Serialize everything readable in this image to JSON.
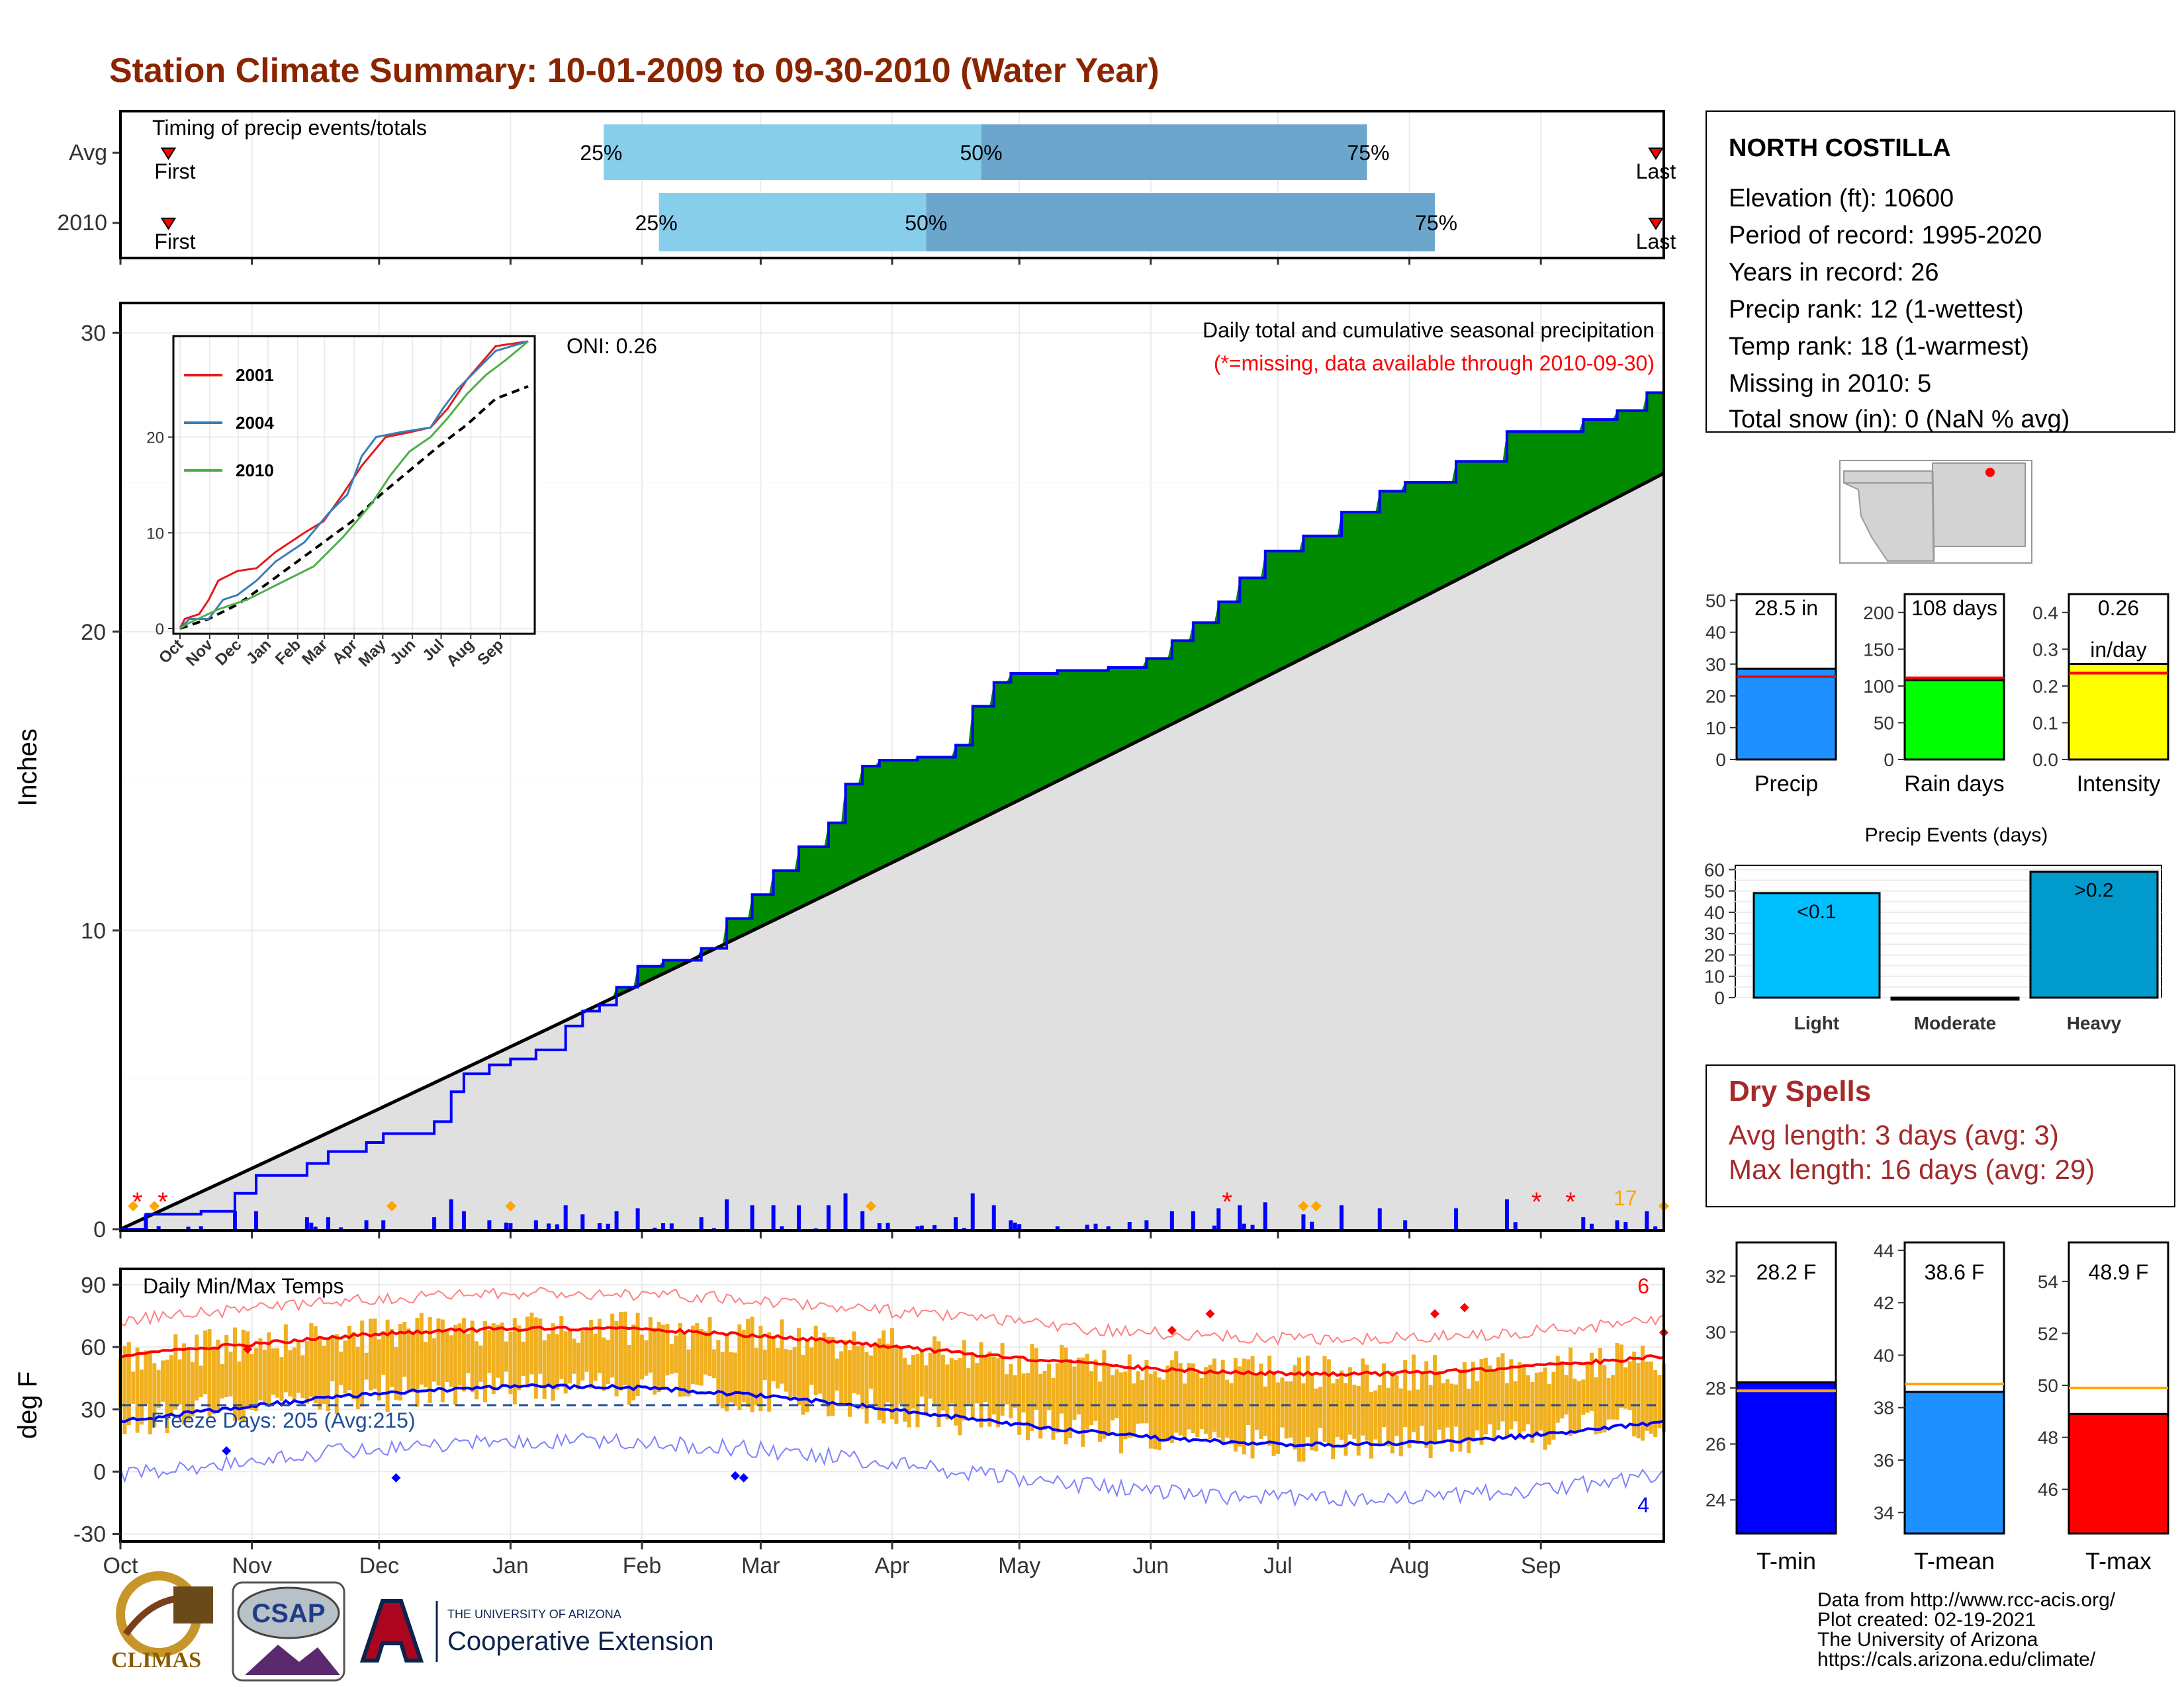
{
  "title": "Station Climate Summary: 10-01-2009 to 09-30-2010 (Water Year)",
  "colors": {
    "title": "#8B2500",
    "q_light": "#87CEEB",
    "q_dark": "#6CA6CD",
    "surplus": "#008B00",
    "deficit": "#8B5A00",
    "normal_fill": "#E0E0E0",
    "precip_bars": "#0000FF",
    "temp_bars": "#F0B020",
    "tmax_line": "#FF0000",
    "tmin_line": "#0000FF",
    "dry_spells": "#A52A2A"
  },
  "timing": {
    "title": "Timing of precip events/totals",
    "rows": [
      {
        "label": "Avg",
        "first": "First",
        "last": "Last",
        "q25_label": "25%",
        "q50_label": "50%",
        "q75_label": "75%",
        "first_day": 6,
        "q25_day": 114,
        "q50_day": 203,
        "q75_day": 294,
        "last_day": 364
      },
      {
        "label": "2010",
        "first": "First",
        "last": "Last",
        "q25_label": "25%",
        "q50_label": "50%",
        "q75_label": "75%",
        "first_day": 6,
        "q25_day": 127,
        "q50_day": 190,
        "q75_day": 310,
        "last_day": 364
      }
    ]
  },
  "precip": {
    "ylabel": "Inches",
    "title1": "Daily total and cumulative seasonal precipitation",
    "title2": "(*=missing, data available through 2010-09-30)",
    "oni": "ONI: 0.26",
    "corner_count": "17",
    "yticks": [
      "0",
      "10",
      "20",
      "30"
    ],
    "ymax": 31,
    "final_total": 28.5,
    "final_normal": 25.3
  },
  "inset": {
    "yticks": [
      "0",
      "10",
      "20"
    ],
    "months": [
      "Oct",
      "Nov",
      "Dec",
      "Jan",
      "Feb",
      "Mar",
      "Apr",
      "May",
      "Jun",
      "Jul",
      "Aug",
      "Sep"
    ],
    "legend": [
      {
        "name": "2001",
        "color": "#E41A1C"
      },
      {
        "name": "2004",
        "color": "#377EB8"
      },
      {
        "name": "2010",
        "color": "#4DAF4A"
      }
    ]
  },
  "temps": {
    "ylabel": "deg F",
    "title": "Daily Min/Max Temps",
    "freeze": "Freeze Days: 205 (Avg:215)",
    "count_high": "6",
    "count_low": "4",
    "yticks": [
      "-30",
      "0",
      "30",
      "60",
      "90"
    ]
  },
  "months": [
    "Oct",
    "Nov",
    "Dec",
    "Jan",
    "Feb",
    "Mar",
    "Apr",
    "May",
    "Jun",
    "Jul",
    "Aug",
    "Sep"
  ],
  "station": {
    "name": "NORTH COSTILLA",
    "lines": [
      "Elevation (ft): 10600",
      "Period of record: 1995-2020",
      "Years in record: 26",
      "Precip rank: 12 (1-wettest)",
      "Temp rank: 18 (1-warmest)",
      "Missing in 2010: 5",
      "Total snow (in): 0 (NaN % avg)"
    ]
  },
  "small_bars": [
    {
      "label": "Precip",
      "value_label": "28.5 in",
      "value": 28.5,
      "avg": 26,
      "ymax": 52,
      "yticks": [
        "0",
        "10",
        "20",
        "30",
        "40",
        "50"
      ],
      "tickvals": [
        0,
        10,
        20,
        30,
        40,
        50
      ],
      "color": "#1E90FF"
    },
    {
      "label": "Rain days",
      "value_label": "108 days",
      "value": 108,
      "avg": 111,
      "ymax": 225,
      "yticks": [
        "0",
        "50",
        "100",
        "150",
        "200"
      ],
      "tickvals": [
        0,
        50,
        100,
        150,
        200
      ],
      "color": "#00FF00"
    },
    {
      "label": "Intensity",
      "value_label": "0.26",
      "value_label2": "in/day",
      "value": 0.26,
      "avg": 0.235,
      "ymax": 0.45,
      "yticks": [
        "0.0",
        "0.1",
        "0.2",
        "0.3",
        "0.4"
      ],
      "tickvals": [
        0,
        0.1,
        0.2,
        0.3,
        0.4
      ],
      "color": "#FFFF00"
    }
  ],
  "events": {
    "title": "Precip Events (days)",
    "yticks": [
      "0",
      "10",
      "20",
      "30",
      "40",
      "50",
      "60"
    ],
    "ymax": 62,
    "categories": [
      "Light",
      "Moderate",
      "Heavy"
    ],
    "values": [
      49,
      0,
      59
    ],
    "labels": [
      "<0.1",
      "",
      ">0.2"
    ],
    "colors": [
      "#00BFFF",
      "#009ACD",
      "#009ACD"
    ]
  },
  "dry": {
    "title": "Dry Spells",
    "avg_line": "Avg length: 3 days (avg: 3)",
    "max_line": "Max length: 16 days (avg: 29)"
  },
  "temp_bars": [
    {
      "label": "T-min",
      "value_label": "28.2 F",
      "value": 28.2,
      "avg": 27.9,
      "ymin": 22.8,
      "ymax": 33.2,
      "yticks": [
        "24",
        "26",
        "28",
        "30",
        "32"
      ],
      "tickvals": [
        24,
        26,
        28,
        30,
        32
      ],
      "color": "#0000FF"
    },
    {
      "label": "T-mean",
      "value_label": "38.6 F",
      "value": 38.6,
      "avg": 38.9,
      "ymin": 33.2,
      "ymax": 44.3,
      "yticks": [
        "34",
        "36",
        "38",
        "40",
        "42",
        "44"
      ],
      "tickvals": [
        34,
        36,
        38,
        40,
        42,
        44
      ],
      "color": "#1E90FF"
    },
    {
      "label": "T-max",
      "value_label": "48.9 F",
      "value": 48.9,
      "avg": 49.9,
      "ymin": 44.3,
      "ymax": 55.5,
      "yticks": [
        "46",
        "48",
        "50",
        "52",
        "54"
      ],
      "tickvals": [
        46,
        48,
        50,
        52,
        54
      ],
      "color": "#FF0000"
    }
  ],
  "footer": {
    "lines": [
      "Data from http://www.rcc-acis.org/",
      "Plot created: 02-19-2021",
      "The University of Arizona",
      "https://cals.arizona.edu/climate/"
    ]
  },
  "logos": {
    "climas": "CLIMAS",
    "csap": "CSAP",
    "ua_small": "THE UNIVERSITY OF ARIZONA",
    "coop": "Cooperative Extension"
  }
}
